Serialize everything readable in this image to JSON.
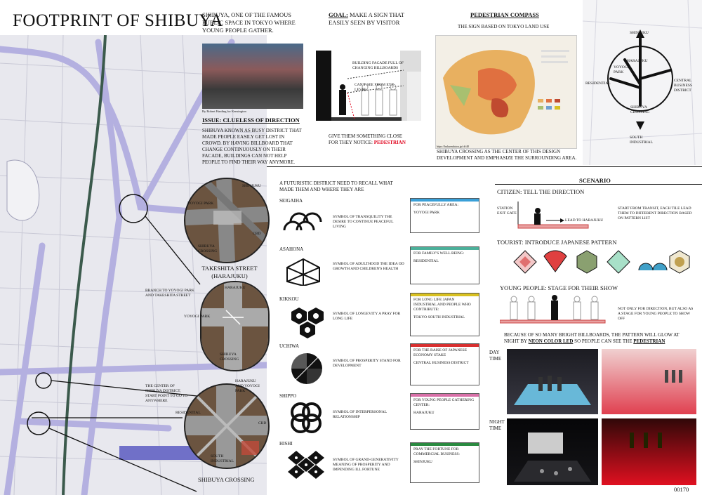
{
  "title": "FOOTPRINT OF SHIBUYA",
  "intro": "SHIBUYA, ONE OF THE FAMOUS PUBLIC SPACE IN TOKYO WHERE YOUNG PEOPLE GATHER.",
  "photo_credit": "By Robert Harding for Kensington",
  "issue": {
    "title": "ISSUE: CLUELESS OF DIRECTION",
    "text": "SHIBUYA KNOWN AS BUSY DISTRICT THAT MADE PEOPLE EASILY GET LOST IN CROWD. BY HAVING BILLBOARD THAT CHANGE CONTINUOUSLY ON THEIR FACADE, BUILDINGS CAN NOT HELP PEOPLE TO FIND THEIR WAY ANYMORE."
  },
  "goal": {
    "label": "GOAL:",
    "text": "MAKE A SIGN THAT EASILY SEEN BY VISITOR",
    "note1": "BUILDING FACADE FULL OF CHANGING BILLBOARDS",
    "note2": "CAN'T SEE FROM EYE LEVEL",
    "bottom": "GIVE THEM SOMETHING CLOSE FOR THEY NOTICE:",
    "bottom_red": "PEDESTRIAN"
  },
  "compass": {
    "title": "PEDESTRIAN COMPASS",
    "subtitle": "THE SIGN BASED ON TOKYO LAND USE",
    "url": "https://bukuendaiou.jp/cb/48",
    "text": "SHIBUYA CROSSING AS THE CENTER OF THIS DESIGN DEVELOPMENT AND EMPHASIZE THE SURROUNDING AREA."
  },
  "map_labels": {
    "shinjuku": "SHINJUKU",
    "harajuku": "HARAJUKU",
    "yoyogi": "YOYOGI PARK",
    "residential": "RESIDENTIAL",
    "central": "CENTRAL BUSINESS DISTRICT",
    "crossing": "SHIBUYA CROSSING",
    "south": "SOUTH INDUSTRIAL"
  },
  "circles": {
    "c1_title": "TAKESHITA STREET (HARAJUKU)",
    "c1_labels": [
      "SHINJUKU",
      "YOYOGI PARK",
      "CBD",
      "SHIBUYA CROSSING"
    ],
    "c2_labels": [
      "HARAJUKU",
      "YOYOGI PARK",
      "SHIBUYA CROSSING"
    ],
    "c3_title": "SHIBUYA CROSSING",
    "c3_labels": [
      "HARAJUKU AND YOYOGI PARK",
      "RESIDENTIAL",
      "CBD",
      "SOUTH INDUSTRIAL"
    ],
    "note_branch": "BRANCH TO YOYOGI PARK AND TAKESHITA STREET",
    "note_center": "THE CENTER OF SHIBUYA DISTRICT, START POINT TO GO TO ANYWHERE"
  },
  "patterns_intro": "A FUTURISTIC DISTRICT NEED TO RECALL WHAT MADE THEM AND WHERE THEY ARE",
  "patterns": [
    {
      "name": "SEIGAIHA",
      "symbol": "SYMBOL OF TRANSQUILITY THE DESIRE TO CONTINUE PEACEFUL LIVING",
      "box1": "FOR PEACEFULLY AREA:",
      "box2": "YOYOGI PARK",
      "color": "#3aa0d8"
    },
    {
      "name": "ASAHONA",
      "symbol": "SYMBOL OF ADULTHOOD THE IDEA OD GROWTH AND CHILDREN'S HEALTH",
      "box1": "FOR FAMILY'S WELL BEING:",
      "box2": "RESIDENTIAL",
      "color": "#4cb09a"
    },
    {
      "name": "KIKKOU",
      "symbol": "SYMBOL OF LONGEVITY A PRAY FOR LONG LIFE",
      "box1": "FOR LONG LIFE JAPAN INDUSTRIAL AND PEOPLE WHO CONTRIBUTE:",
      "box2": "TOKYO SOUTH INDUSTRIAL",
      "color": "#d8c020"
    },
    {
      "name": "UCHIWA",
      "symbol": "SYMBOL OF PROSPERITY STAND FOR DEVELOPMENT",
      "box1": "FOR THE RAISE OF JAPANESE ECONOMY STAKE",
      "box2": "CENTRAL BUSINESS DISTRICT",
      "color": "#d83030"
    },
    {
      "name": "SHIPPO",
      "symbol": "SYMBOL OF INTERPERSONAL RELATIONSHIP",
      "box1": "FOR YOUNG PEOPLE GATHERING CENTER:",
      "box2": "HARAJUKU",
      "color": "#d870a8"
    },
    {
      "name": "HISHI",
      "symbol": "SYMBOL OF GRAND-GENERATIVITY MEANING OF PROSPERITY AND IMPENDING ILL FORTUNE",
      "box1": "PRAY THE FORTUNE FOR COMMERCIAL BUSINESS:",
      "box2": "SHINJUKU",
      "color": "#2a8a40"
    }
  ],
  "scenario": {
    "title": "SCENARIO",
    "citizen": "CITIZEN: TELL THE DIRECTION",
    "station": "STATION EXIT GATE",
    "lead": "LEAD TO HARAJUKU",
    "citizen_note": "START FROM TRANSIT, EACH TILE LEAD THEM TO DIFFERENT DIRECTION BASED ON PATTERN LIST",
    "tourist": "TOURIST: INTRODUCE JAPANESE PATTERN",
    "young": "YOUNG PEOPLE: STAGE FOR THEIR SHOW",
    "young_note": "NOT ONLY FOR DIRECTION, BUT ALSO AS A STAGE FOR YOUNG PEOPLE TO SHOW OFF",
    "glow": "BECAUSE OF SO MANY BRIGHT BILLBOARDS, THE PATTERN WILL GLOW AT NIGHT BY",
    "glow_bold": "NEON COLOR LED",
    "glow_mid": "SO PEOPLE CAN SEE THE",
    "glow_red": "PEDESTRIAN",
    "day": "DAY TIME",
    "night": "NIGHT TIME"
  },
  "page_number": "00170"
}
